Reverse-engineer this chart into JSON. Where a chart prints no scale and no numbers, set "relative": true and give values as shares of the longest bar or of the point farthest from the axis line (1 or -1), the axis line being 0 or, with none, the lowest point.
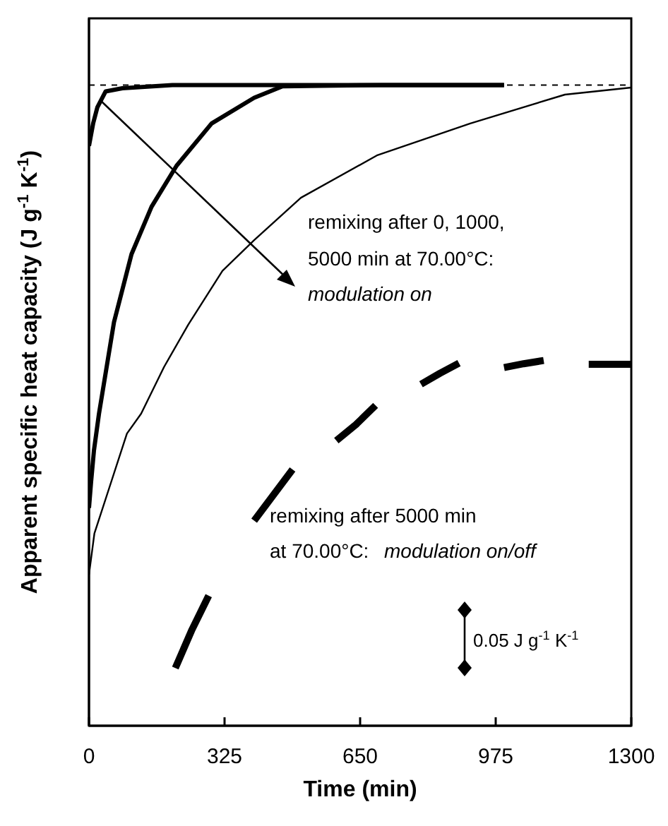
{
  "chart_data": {
    "type": "line",
    "relative": true,
    "xlabel": "Time (min)",
    "ylabel": "Apparent specific heat capacity (J g$^{-1}$ K$^{-1}$)",
    "xlim": [
      0,
      1300
    ],
    "xticks": [
      0,
      325,
      650,
      975,
      1300
    ],
    "ref_lines": [
      {
        "axis": "y",
        "value": 1,
        "line_style": "dashed",
        "color": "#000000"
      }
    ],
    "annotations": [
      "remixing after 0, 1000,",
      "5000 min at 70.00°C:",
      "modulation on",
      "remixing after 5000 min",
      "at 70.00°C:",
      "modulation on/off",
      "0.05 J g$^{-1}$ K$^{-1}$"
    ],
    "series": [
      {
        "color": "#000000",
        "x": [
          0,
          10,
          20,
          40,
          80,
          200,
          500,
          995
        ],
        "values": [
          0.905,
          0.94,
          0.965,
          0.99,
          0.995,
          1.0,
          1.0,
          1.0
        ]
      },
      {
        "color": "#000000",
        "x": [
          0,
          5,
          12,
          24,
          60,
          102,
          150,
          210,
          294,
          396,
          464,
          700,
          995
        ],
        "values": [
          0.34,
          0.38,
          0.43,
          0.487,
          0.63,
          0.736,
          0.81,
          0.874,
          0.94,
          0.98,
          0.998,
          1.0,
          1.0
        ]
      },
      {
        "color": "#000000",
        "x": [
          0,
          13,
          47,
          91,
          125,
          180,
          238,
          320,
          396,
          508,
          690,
          914,
          1141,
          1300
        ],
        "values": [
          0.236,
          0.3,
          0.368,
          0.456,
          0.487,
          0.56,
          0.626,
          0.71,
          0.758,
          0.824,
          0.89,
          0.94,
          0.985,
          0.996
        ]
      },
      {
        "color": "#000000",
        "x": [
          207,
          247,
          287,
          340,
          396,
          442,
          488,
          540,
          593,
          640,
          687,
          740,
          796,
          841,
          887,
          940,
          995,
          1042,
          1090,
          1145,
          1198,
          1249,
          1300
        ],
        "values": [
          0.09,
          0.15,
          0.203,
          null,
          0.32,
          0.36,
          0.4,
          null,
          0.445,
          0.47,
          0.5,
          null,
          0.533,
          0.55,
          0.566,
          null,
          0.559,
          0.565,
          0.57,
          null,
          0.564,
          0.564,
          0.564
        ]
      }
    ]
  }
}
